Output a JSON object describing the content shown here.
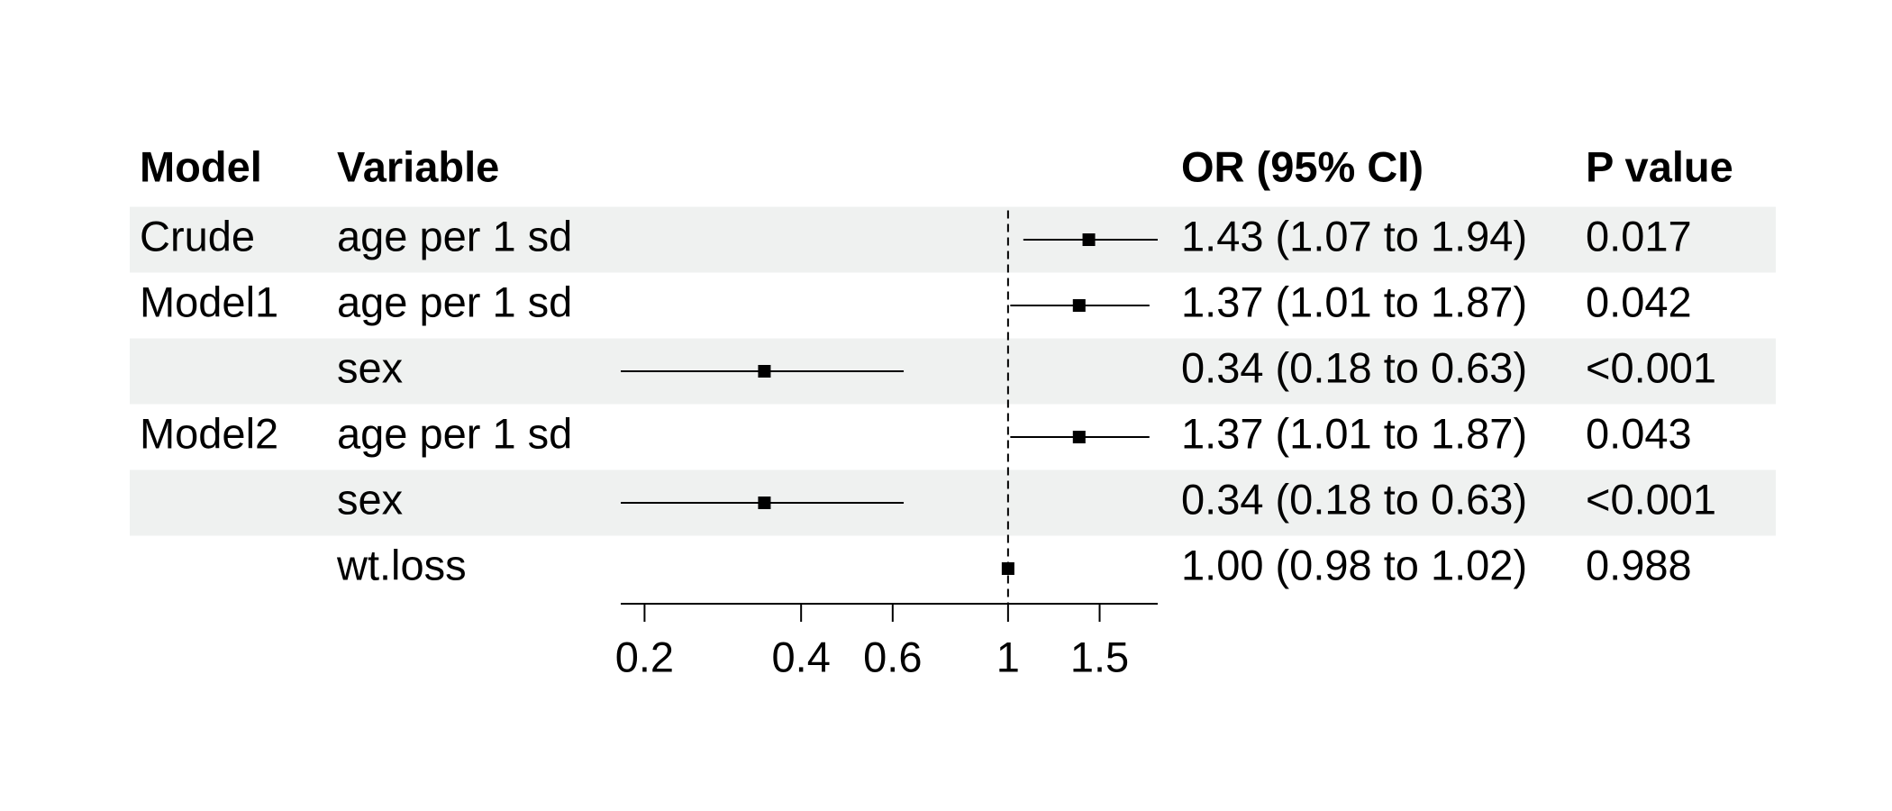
{
  "chart_data": {
    "type": "forest",
    "columns": [
      "Model",
      "Variable",
      "OR (95% CI)",
      "P value"
    ],
    "models": [
      "Crude",
      "Model1",
      null,
      "Model2",
      null,
      null
    ],
    "categories": [
      "age per 1 sd",
      "age per 1 sd",
      "sex",
      "age per 1 sd",
      "sex",
      "wt.loss"
    ],
    "values": [
      1.43,
      1.37,
      0.34,
      1.37,
      0.34,
      1.0
    ],
    "lower": [
      1.07,
      1.01,
      0.18,
      1.01,
      0.18,
      0.98
    ],
    "upper": [
      1.94,
      1.87,
      0.63,
      1.87,
      0.63,
      1.02
    ],
    "value_labels": [
      "1.43 (1.07 to 1.94)",
      "1.37 (1.01 to 1.87)",
      "0.34 (0.18 to 0.63)",
      "1.37 (1.01 to 1.87)",
      "0.34 (0.18 to 0.63)",
      "1.00 (0.98 to 1.02)"
    ],
    "p_values": [
      "0.017",
      "0.042",
      "<0.001",
      "0.043",
      "<0.001",
      "0.988"
    ],
    "xlim": [
      0.18,
      1.94
    ],
    "xticks": [
      0.2,
      0.4,
      0.6,
      1,
      1.5
    ],
    "log_x": true,
    "reference": 1,
    "band_color": "#eff1f0",
    "color": "#000000"
  }
}
